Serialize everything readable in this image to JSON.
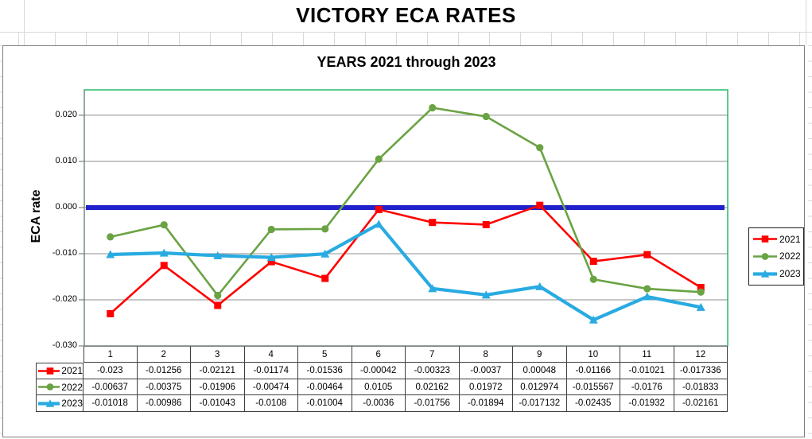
{
  "sheet": {
    "main_title": "VICTORY ECA RATES"
  },
  "chart": {
    "title": "YEARS 2021 through 2023",
    "y_axis_title": "ECA rate"
  },
  "chart_data": {
    "type": "line",
    "title": "YEARS 2021 through 2023",
    "xlabel": "",
    "ylabel": "ECA rate",
    "categories": [
      1,
      2,
      3,
      4,
      5,
      6,
      7,
      8,
      9,
      10,
      11,
      12
    ],
    "series": [
      {
        "name": "2021",
        "color": "#FF0000",
        "marker": "square",
        "line_width": 2.6,
        "values": [
          -0.023,
          -0.01256,
          -0.02121,
          -0.01174,
          -0.01536,
          -0.00042,
          -0.00323,
          -0.0037,
          0.00048,
          -0.01166,
          -0.01021,
          -0.017336
        ]
      },
      {
        "name": "2022",
        "color": "#6AA343",
        "marker": "circle",
        "line_width": 2.6,
        "values": [
          -0.00637,
          -0.00375,
          -0.01906,
          -0.00474,
          -0.00464,
          0.0105,
          0.02162,
          0.01972,
          0.012974,
          -0.015567,
          -0.0176,
          -0.01833
        ]
      },
      {
        "name": "2023",
        "color": "#29ABE2",
        "marker": "triangle",
        "line_width": 4.2,
        "values": [
          -0.01018,
          -0.00986,
          -0.01043,
          -0.0108,
          -0.01004,
          -0.0036,
          -0.01756,
          -0.01894,
          -0.017132,
          -0.02435,
          -0.01932,
          -0.02161
        ]
      }
    ],
    "y_ticks": [
      "0.020",
      "0.010",
      "0.000",
      "-0.010",
      "-0.020",
      "-0.030"
    ],
    "ylim": [
      -0.03,
      0.0255
    ],
    "grid": "horizontal",
    "legend_position": "right-outside",
    "zero_line": {
      "value": 0,
      "color": "#2121CC",
      "width": 6
    },
    "plot_border_color": "#00B050",
    "gridline_color": "#8C8C8C",
    "axis_color": "#808080"
  },
  "legend": {
    "items": [
      "2021",
      "2022",
      "2023"
    ]
  },
  "table": {
    "columns": [
      "1",
      "2",
      "3",
      "4",
      "5",
      "6",
      "7",
      "8",
      "9",
      "10",
      "11",
      "12"
    ],
    "rows": [
      {
        "label": "2021",
        "values": [
          "-0.023",
          "-0.01256",
          "-0.02121",
          "-0.01174",
          "-0.01536",
          "-0.00042",
          "-0.00323",
          "-0.0037",
          "0.00048",
          "-0.01166",
          "-0.01021",
          "-0.017336"
        ]
      },
      {
        "label": "2022",
        "values": [
          "-0.00637",
          "-0.00375",
          "-0.01906",
          "-0.00474",
          "-0.00464",
          "0.0105",
          "0.02162",
          "0.01972",
          "0.012974",
          "-0.015567",
          "-0.0176",
          "-0.01833"
        ]
      },
      {
        "label": "2023",
        "values": [
          "-0.01018",
          "-0.00986",
          "-0.01043",
          "-0.0108",
          "-0.01004",
          "-0.0036",
          "-0.01756",
          "-0.01894",
          "-0.017132",
          "-0.02435",
          "-0.01932",
          "-0.02161"
        ]
      }
    ]
  }
}
